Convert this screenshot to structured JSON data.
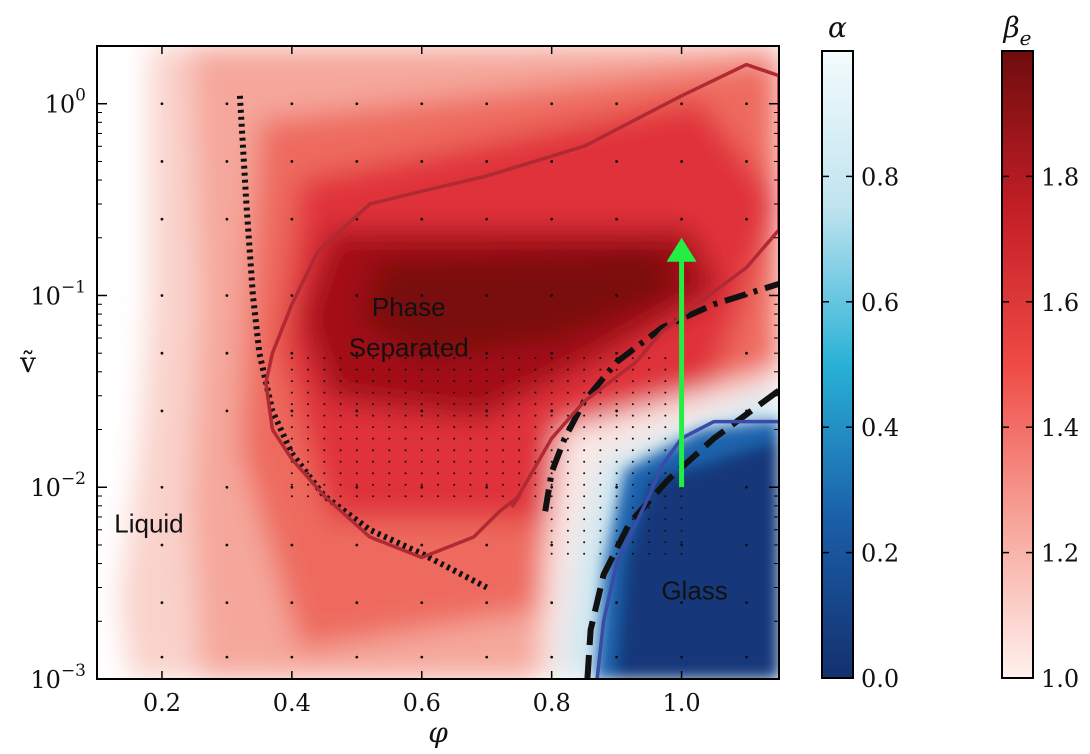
{
  "chart_data": {
    "type": "heatmap",
    "title": "",
    "xlabel": "φ",
    "ylabel": "ṽ",
    "xlim": [
      0.1,
      1.15
    ],
    "ylim": [
      0.001,
      2.0
    ],
    "yscale": "log",
    "x_ticks": [
      {
        "value": 0.2,
        "label": "0.2"
      },
      {
        "value": 0.4,
        "label": "0.4"
      },
      {
        "value": 0.6,
        "label": "0.6"
      },
      {
        "value": 0.8,
        "label": "0.8"
      },
      {
        "value": 1.0,
        "label": "1.0"
      }
    ],
    "y_ticks": [
      {
        "value": 0.001,
        "base": "10",
        "exp": "−3"
      },
      {
        "value": 0.01,
        "base": "10",
        "exp": "−2"
      },
      {
        "value": 0.1,
        "base": "10",
        "exp": "−1"
      },
      {
        "value": 1.0,
        "base": "10",
        "exp": "0"
      }
    ],
    "regions": [
      {
        "label": "Liquid",
        "x": 0.18,
        "y": 0.0058
      },
      {
        "label": "Phase",
        "x": 0.58,
        "y": 0.078
      },
      {
        "label": "Separated",
        "x": 0.58,
        "y": 0.048
      },
      {
        "label": "Glass",
        "x": 1.02,
        "y": 0.0026
      }
    ],
    "curves": [
      {
        "style": "dotted",
        "color": "#111111",
        "points": [
          [
            0.32,
            1.1
          ],
          [
            0.33,
            0.3
          ],
          [
            0.34,
            0.1
          ],
          [
            0.35,
            0.05
          ],
          [
            0.37,
            0.025
          ],
          [
            0.4,
            0.015
          ],
          [
            0.45,
            0.009
          ],
          [
            0.52,
            0.006
          ],
          [
            0.6,
            0.0045
          ],
          [
            0.7,
            0.003
          ]
        ]
      },
      {
        "style": "dashdot",
        "color": "#111111",
        "points": [
          [
            0.79,
            0.0075
          ],
          [
            0.8,
            0.012
          ],
          [
            0.82,
            0.018
          ],
          [
            0.85,
            0.028
          ],
          [
            0.9,
            0.045
          ],
          [
            0.97,
            0.068
          ],
          [
            1.05,
            0.09
          ],
          [
            1.15,
            0.115
          ]
        ]
      },
      {
        "style": "dashed",
        "color": "#111111",
        "points": [
          [
            0.855,
            0.001
          ],
          [
            0.86,
            0.0018
          ],
          [
            0.88,
            0.0035
          ],
          [
            0.92,
            0.0065
          ],
          [
            0.98,
            0.011
          ],
          [
            1.05,
            0.018
          ],
          [
            1.15,
            0.032
          ]
        ]
      },
      {
        "style": "solid-phase-boundary",
        "color": "#b02a33",
        "points": [
          [
            0.37,
            0.02
          ],
          [
            0.4,
            0.014
          ],
          [
            0.45,
            0.009
          ],
          [
            0.52,
            0.0055
          ],
          [
            0.6,
            0.0043
          ],
          [
            0.68,
            0.0055
          ],
          [
            0.72,
            0.0075
          ],
          [
            0.75,
            0.009
          ],
          [
            0.74,
            0.008
          ],
          [
            0.77,
            0.012
          ],
          [
            0.8,
            0.018
          ],
          [
            0.85,
            0.028
          ],
          [
            0.93,
            0.045
          ],
          [
            0.97,
            0.065
          ],
          [
            1.02,
            0.088
          ],
          [
            1.1,
            0.14
          ],
          [
            1.15,
            0.22
          ],
          [
            1.15,
            1.4
          ],
          [
            1.1,
            1.6
          ],
          [
            1.0,
            1.1
          ],
          [
            0.85,
            0.6
          ],
          [
            0.7,
            0.42
          ],
          [
            0.6,
            0.35
          ],
          [
            0.52,
            0.3
          ],
          [
            0.44,
            0.17
          ],
          [
            0.4,
            0.09
          ],
          [
            0.37,
            0.05
          ],
          [
            0.36,
            0.035
          ],
          [
            0.37,
            0.02
          ]
        ]
      },
      {
        "style": "solid-glass-boundary",
        "color": "#3b4ba8",
        "points": [
          [
            0.87,
            0.001
          ],
          [
            0.88,
            0.002
          ],
          [
            0.9,
            0.004
          ],
          [
            0.93,
            0.0065
          ],
          [
            0.95,
            0.009
          ],
          [
            0.97,
            0.013
          ],
          [
            1.0,
            0.018
          ],
          [
            1.05,
            0.022
          ],
          [
            1.15,
            0.022
          ]
        ]
      }
    ],
    "arrow": {
      "color": "#22ee44",
      "from": [
        1.0,
        0.01
      ],
      "to": [
        1.0,
        0.2
      ]
    },
    "colorbars": [
      {
        "label": "α",
        "range": [
          0.0,
          1.0
        ],
        "colors": [
          "#14306e",
          "#1a5ea8",
          "#29b1d7",
          "#bfe3ef",
          "#f4fbfd"
        ],
        "ticks": [
          "0.0",
          "0.2",
          "0.4",
          "0.6",
          "0.8"
        ],
        "tick_values": [
          0.0,
          0.2,
          0.4,
          0.6,
          0.8
        ]
      },
      {
        "label": "β",
        "label_sub": "e",
        "range": [
          1.0,
          2.0
        ],
        "colors": [
          "#fff1ee",
          "#f7a49a",
          "#ef4a44",
          "#c21e26",
          "#6f0c0d"
        ],
        "ticks": [
          "1.0",
          "1.2",
          "1.4",
          "1.6",
          "1.8"
        ],
        "tick_values": [
          1.0,
          1.2,
          1.4,
          1.6,
          1.8
        ]
      }
    ]
  }
}
